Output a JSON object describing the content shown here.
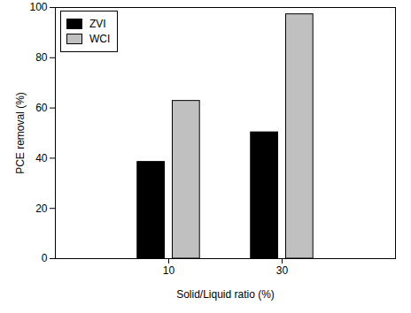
{
  "chart_data": {
    "type": "bar",
    "categories": [
      "10",
      "30"
    ],
    "series": [
      {
        "name": "ZVI",
        "color": "#000000",
        "values": [
          38.5,
          50.3
        ]
      },
      {
        "name": "WCI",
        "color": "#c0c0c0",
        "values": [
          62.8,
          97.3
        ]
      }
    ],
    "xlabel": "Solid/Liquid ratio (%)",
    "ylabel": "PCE removal (%)",
    "ylim": [
      0,
      100
    ],
    "yticks": [
      0,
      20,
      40,
      60,
      80,
      100
    ],
    "grid": false,
    "legend": "upper left"
  }
}
